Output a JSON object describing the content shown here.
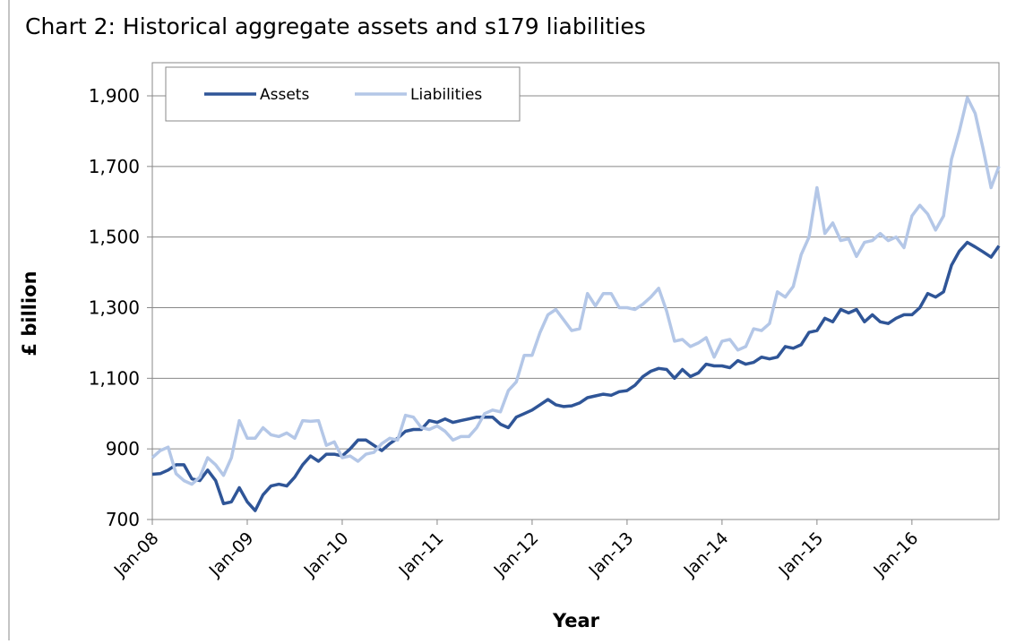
{
  "chart_data": {
    "type": "line",
    "title": "Chart 2: Historical aggregate assets and s179 liabilities",
    "x_label": "Year",
    "y_label": "£ billion",
    "categories": [
      "Jan-08",
      null,
      null,
      null,
      null,
      null,
      null,
      null,
      null,
      null,
      null,
      null,
      "Jan-09",
      null,
      null,
      null,
      null,
      null,
      null,
      null,
      null,
      null,
      null,
      null,
      "Jan-10",
      null,
      null,
      null,
      null,
      null,
      null,
      null,
      null,
      null,
      null,
      null,
      "Jan-11",
      null,
      null,
      null,
      null,
      null,
      null,
      null,
      null,
      null,
      null,
      null,
      "Jan-12",
      null,
      null,
      null,
      null,
      null,
      null,
      null,
      null,
      null,
      null,
      null,
      "Jan-13",
      null,
      null,
      null,
      null,
      null,
      null,
      null,
      null,
      null,
      null,
      null,
      "Jan-14",
      null,
      null,
      null,
      null,
      null,
      null,
      null,
      null,
      null,
      null,
      null,
      "Jan-15",
      null,
      null,
      null,
      null,
      null,
      null,
      null,
      null,
      null,
      null,
      null,
      "Jan-16",
      null,
      null,
      null,
      null,
      null,
      null,
      null,
      null,
      null,
      null,
      null
    ],
    "series": [
      {
        "name": "Assets",
        "color": "#2f5597",
        "values": [
          828,
          830,
          840,
          855,
          855,
          815,
          810,
          840,
          810,
          745,
          750,
          790,
          750,
          725,
          770,
          795,
          800,
          795,
          820,
          855,
          880,
          865,
          885,
          885,
          880,
          900,
          925,
          925,
          910,
          895,
          915,
          930,
          950,
          955,
          955,
          980,
          975,
          985,
          975,
          980,
          985,
          990,
          990,
          990,
          970,
          960,
          990,
          1000,
          1010,
          1025,
          1040,
          1025,
          1020,
          1022,
          1030,
          1045,
          1050,
          1055,
          1052,
          1062,
          1065,
          1080,
          1105,
          1120,
          1128,
          1125,
          1100,
          1125,
          1105,
          1115,
          1140,
          1135,
          1135,
          1130,
          1150,
          1140,
          1145,
          1160,
          1155,
          1160,
          1190,
          1185,
          1195,
          1230,
          1235,
          1270,
          1260,
          1295,
          1285,
          1295,
          1260,
          1280,
          1260,
          1255,
          1270,
          1280,
          1280,
          1300,
          1340,
          1330,
          1345,
          1420,
          1460,
          1485,
          1472,
          1458,
          1443,
          1475
        ]
      },
      {
        "name": "Liabilities",
        "color": "#b4c7e7",
        "values": [
          875,
          895,
          905,
          830,
          810,
          800,
          820,
          875,
          855,
          825,
          875,
          980,
          930,
          930,
          960,
          940,
          935,
          945,
          930,
          980,
          978,
          980,
          910,
          920,
          875,
          880,
          865,
          885,
          890,
          915,
          930,
          925,
          995,
          990,
          960,
          955,
          965,
          950,
          925,
          935,
          935,
          960,
          1000,
          1010,
          1005,
          1065,
          1090,
          1165,
          1165,
          1230,
          1280,
          1295,
          1265,
          1235,
          1240,
          1340,
          1305,
          1340,
          1340,
          1300,
          1300,
          1295,
          1310,
          1330,
          1355,
          1290,
          1205,
          1210,
          1190,
          1200,
          1215,
          1160,
          1205,
          1210,
          1180,
          1190,
          1240,
          1235,
          1255,
          1345,
          1330,
          1360,
          1450,
          1500,
          1640,
          1510,
          1540,
          1490,
          1495,
          1445,
          1485,
          1490,
          1510,
          1490,
          1500,
          1470,
          1560,
          1590,
          1565,
          1520,
          1560,
          1720,
          1800,
          1895,
          1850,
          1750,
          1640,
          1700
        ]
      }
    ],
    "ylim": [
      700,
      1900
    ],
    "yticks": [
      700,
      900,
      {
        "value": 1100,
        "label": "1,100"
      },
      {
        "value": 1300,
        "label": "1,300"
      },
      {
        "value": 1500,
        "label": "1,500"
      },
      {
        "value": 1700,
        "label": "1,700"
      },
      {
        "value": 1900,
        "label": "1,900"
      }
    ],
    "grid": true,
    "legend": "upper left"
  }
}
